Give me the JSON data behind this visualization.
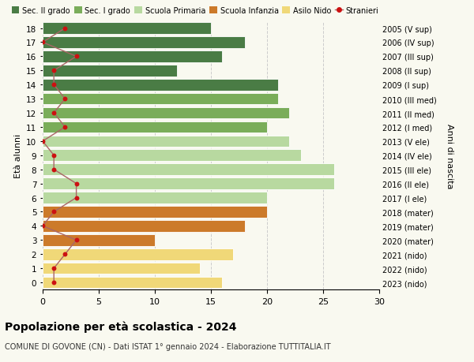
{
  "ages": [
    18,
    17,
    16,
    15,
    14,
    13,
    12,
    11,
    10,
    9,
    8,
    7,
    6,
    5,
    4,
    3,
    2,
    1,
    0
  ],
  "anni_nascita": [
    "2005 (V sup)",
    "2006 (IV sup)",
    "2007 (III sup)",
    "2008 (II sup)",
    "2009 (I sup)",
    "2010 (III med)",
    "2011 (II med)",
    "2012 (I med)",
    "2013 (V ele)",
    "2014 (IV ele)",
    "2015 (III ele)",
    "2016 (II ele)",
    "2017 (I ele)",
    "2018 (mater)",
    "2019 (mater)",
    "2020 (mater)",
    "2021 (nido)",
    "2022 (nido)",
    "2023 (nido)"
  ],
  "bar_values": [
    15,
    18,
    16,
    12,
    21,
    21,
    22,
    20,
    22,
    23,
    26,
    26,
    20,
    20,
    18,
    10,
    17,
    14,
    16
  ],
  "stranieri": [
    2,
    0,
    3,
    1,
    1,
    2,
    1,
    2,
    0,
    1,
    1,
    3,
    3,
    1,
    0,
    3,
    2,
    1,
    1
  ],
  "bar_colors": [
    "#4a7c45",
    "#4a7c45",
    "#4a7c45",
    "#4a7c45",
    "#4a7c45",
    "#7aad5a",
    "#7aad5a",
    "#7aad5a",
    "#b8d9a0",
    "#b8d9a0",
    "#b8d9a0",
    "#b8d9a0",
    "#b8d9a0",
    "#cc7a2a",
    "#cc7a2a",
    "#cc7a2a",
    "#f0d878",
    "#f0d878",
    "#f0d878"
  ],
  "legend_labels": [
    "Sec. II grado",
    "Sec. I grado",
    "Scuola Primaria",
    "Scuola Infanzia",
    "Asilo Nido",
    "Stranieri"
  ],
  "legend_colors": [
    "#4a7c45",
    "#7aad5a",
    "#b8d9a0",
    "#cc7a2a",
    "#f0d878",
    "#cc1111"
  ],
  "title": "Popolazione per età scolastica - 2024",
  "subtitle": "COMUNE DI GOVONE (CN) - Dati ISTAT 1° gennaio 2024 - Elaborazione TUTTITALIA.IT",
  "ylabel": "Età alunni",
  "right_label": "Anni di nascita",
  "xlim": [
    0,
    30
  ],
  "background_color": "#f9f9f0",
  "grid_color": "#cccccc",
  "stranieri_color": "#cc1111",
  "stranieri_line_color": "#aa6666"
}
